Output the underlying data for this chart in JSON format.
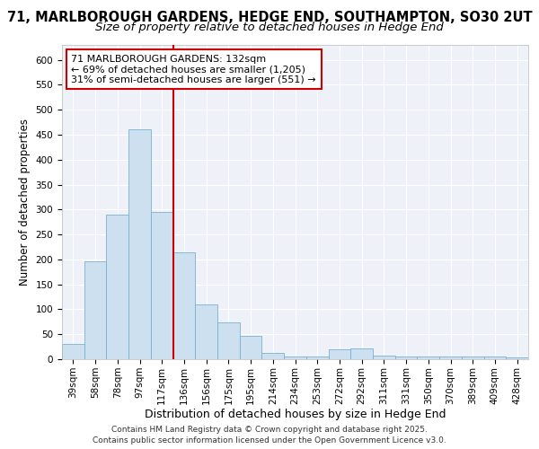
{
  "title_line1": "71, MARLBOROUGH GARDENS, HEDGE END, SOUTHAMPTON, SO30 2UT",
  "title_line2": "Size of property relative to detached houses in Hedge End",
  "xlabel": "Distribution of detached houses by size in Hedge End",
  "ylabel": "Number of detached properties",
  "bar_labels": [
    "39sqm",
    "58sqm",
    "78sqm",
    "97sqm",
    "117sqm",
    "136sqm",
    "156sqm",
    "175sqm",
    "195sqm",
    "214sqm",
    "234sqm",
    "253sqm",
    "272sqm",
    "292sqm",
    "311sqm",
    "331sqm",
    "350sqm",
    "370sqm",
    "389sqm",
    "409sqm",
    "428sqm"
  ],
  "bar_values": [
    30,
    197,
    290,
    460,
    295,
    215,
    110,
    73,
    46,
    13,
    5,
    5,
    20,
    22,
    8,
    5,
    5,
    5,
    5,
    5,
    3
  ],
  "bar_color": "#cce0f0",
  "bar_edge_color": "#7ab0d0",
  "reference_line_color": "#cc0000",
  "annotation_text": "71 MARLBOROUGH GARDENS: 132sqm\n← 69% of detached houses are smaller (1,205)\n31% of semi-detached houses are larger (551) →",
  "annotation_box_color": "#cc0000",
  "ylim": [
    0,
    630
  ],
  "yticks": [
    0,
    50,
    100,
    150,
    200,
    250,
    300,
    350,
    400,
    450,
    500,
    550,
    600
  ],
  "background_color": "#eef2f8",
  "footer_text": "Contains HM Land Registry data © Crown copyright and database right 2025.\nContains public sector information licensed under the Open Government Licence v3.0.",
  "title_fontsize": 10.5,
  "subtitle_fontsize": 9.5,
  "xlabel_fontsize": 9,
  "ylabel_fontsize": 8.5,
  "tick_fontsize": 7.5,
  "annotation_fontsize": 8,
  "footer_fontsize": 6.5
}
